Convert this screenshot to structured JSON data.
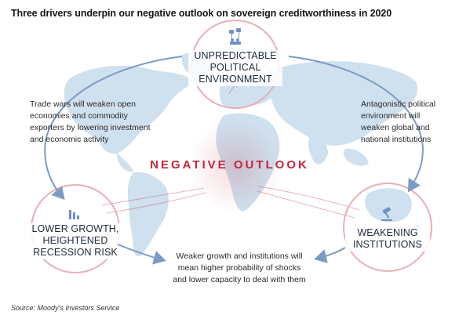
{
  "title": "Three drivers underpin our negative outlook on sovereign creditworthiness in 2020",
  "center_label": "NEGATIVE OUTLOOK",
  "drivers": {
    "top": {
      "title_lines": [
        "UNPREDICTABLE",
        "POLITICAL",
        "ENVIRONMENT"
      ]
    },
    "left": {
      "title_lines": [
        "LOWER GROWTH,",
        "HEIGHTENED",
        "RECESSION RISK"
      ]
    },
    "right": {
      "title_lines": [
        "WEAKENING",
        "INSTITUTIONS"
      ]
    }
  },
  "annotations": {
    "top_left": [
      "Trade wars will weaken open",
      "economies and commodity",
      "exporters by lowering investment",
      "and economic activity"
    ],
    "top_right": [
      "Antagonistic political",
      "environment will",
      "weaken global and",
      "national institutions"
    ],
    "bottom": [
      "Weaker growth and institutions will",
      "mean higher probability of shocks",
      "and lower capacity to deal with them"
    ]
  },
  "source": "Source: Moody’s Investors Service",
  "colors": {
    "map": "#cfe0ee",
    "accent_red": "#c0283a",
    "arrow_blue": "#7c9bc4",
    "circle_pink": "#e7b0b6",
    "icon_blue": "#6f93c7"
  }
}
